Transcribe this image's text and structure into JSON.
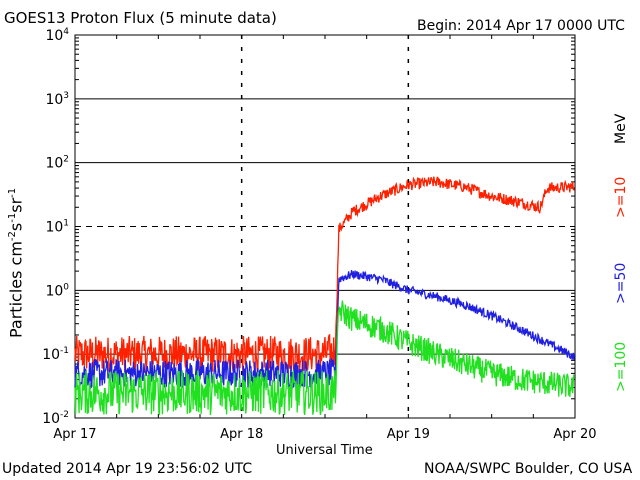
{
  "header": {
    "title": "GOES13 Proton Flux (5 minute data)",
    "begin": "Begin: 2014 Apr 17 0000 UTC"
  },
  "footer": {
    "updated": "Updated 2014 Apr 19 23:56:02 UTC",
    "source": "NOAA/SWPC Boulder, CO USA"
  },
  "legend": {
    "unit": "MeV",
    "items": [
      {
        "label": ">=10",
        "color": "#ff2000"
      },
      {
        "label": ">=50",
        "color": "#2020e0"
      },
      {
        "label": ">=100",
        "color": "#20e020"
      }
    ]
  },
  "chart_data": {
    "type": "line",
    "title": "GOES13 Proton Flux (5 minute data)",
    "xlabel": "Universal Time",
    "ylabel_parts": {
      "base": "Particles cm",
      "exp1": "-2",
      "mid1": "s",
      "exp2": "-1",
      "mid2": "sr",
      "exp3": "-1"
    },
    "yscale": "log",
    "ylim": [
      0.01,
      10000
    ],
    "y_ticks": [
      {
        "value": 10000,
        "base": "10",
        "exp": "4"
      },
      {
        "value": 1000,
        "base": "10",
        "exp": "3"
      },
      {
        "value": 100,
        "base": "10",
        "exp": "2"
      },
      {
        "value": 10,
        "base": "10",
        "exp": "1"
      },
      {
        "value": 1,
        "base": "10",
        "exp": "0"
      },
      {
        "value": 0.1,
        "base": "10",
        "exp": "-1"
      },
      {
        "value": 0.01,
        "base": "10",
        "exp": "-2"
      }
    ],
    "xlim": [
      "2014-04-17",
      "2014-04-20"
    ],
    "x_ticks": [
      "Apr 17",
      "Apr 18",
      "Apr 19",
      "Apr 20"
    ],
    "series": [
      {
        "name": ">=10 MeV",
        "color": "#ff2000",
        "x": [
          "2014-04-17 00:00",
          "2014-04-17 12:00",
          "2014-04-18 00:00",
          "2014-04-18 12:00",
          "2014-04-18 13:30",
          "2014-04-18 14:00",
          "2014-04-18 16:00",
          "2014-04-18 20:00",
          "2014-04-19 00:00",
          "2014-04-19 04:00",
          "2014-04-19 08:00",
          "2014-04-19 12:00",
          "2014-04-19 16:00",
          "2014-04-19 19:00",
          "2014-04-19 20:00",
          "2014-04-19 24:00"
        ],
        "y": [
          0.1,
          0.1,
          0.1,
          0.1,
          0.12,
          9,
          17,
          30,
          45,
          50,
          42,
          30,
          24,
          20,
          40,
          42
        ]
      },
      {
        "name": ">=50 MeV",
        "color": "#2020e0",
        "x": [
          "2014-04-17 00:00",
          "2014-04-17 12:00",
          "2014-04-18 00:00",
          "2014-04-18 12:00",
          "2014-04-18 13:30",
          "2014-04-18 14:00",
          "2014-04-18 16:00",
          "2014-04-18 20:00",
          "2014-04-19 00:00",
          "2014-04-19 04:00",
          "2014-04-19 08:00",
          "2014-04-19 12:00",
          "2014-04-19 16:00",
          "2014-04-19 20:00",
          "2014-04-19 24:00"
        ],
        "y": [
          0.05,
          0.05,
          0.05,
          0.05,
          0.05,
          1.5,
          1.8,
          1.5,
          1.0,
          0.8,
          0.6,
          0.4,
          0.25,
          0.15,
          0.09
        ]
      },
      {
        "name": ">=100 MeV",
        "color": "#20e020",
        "x": [
          "2014-04-17 00:00",
          "2014-04-17 12:00",
          "2014-04-18 00:00",
          "2014-04-18 12:00",
          "2014-04-18 13:30",
          "2014-04-18 14:00",
          "2014-04-18 16:00",
          "2014-04-18 20:00",
          "2014-04-19 00:00",
          "2014-04-19 04:00",
          "2014-04-19 08:00",
          "2014-04-19 12:00",
          "2014-04-19 16:00",
          "2014-04-19 20:00",
          "2014-04-19 24:00"
        ],
        "y": [
          0.025,
          0.025,
          0.025,
          0.025,
          0.025,
          0.5,
          0.35,
          0.25,
          0.15,
          0.1,
          0.07,
          0.05,
          0.04,
          0.035,
          0.03
        ]
      }
    ]
  }
}
